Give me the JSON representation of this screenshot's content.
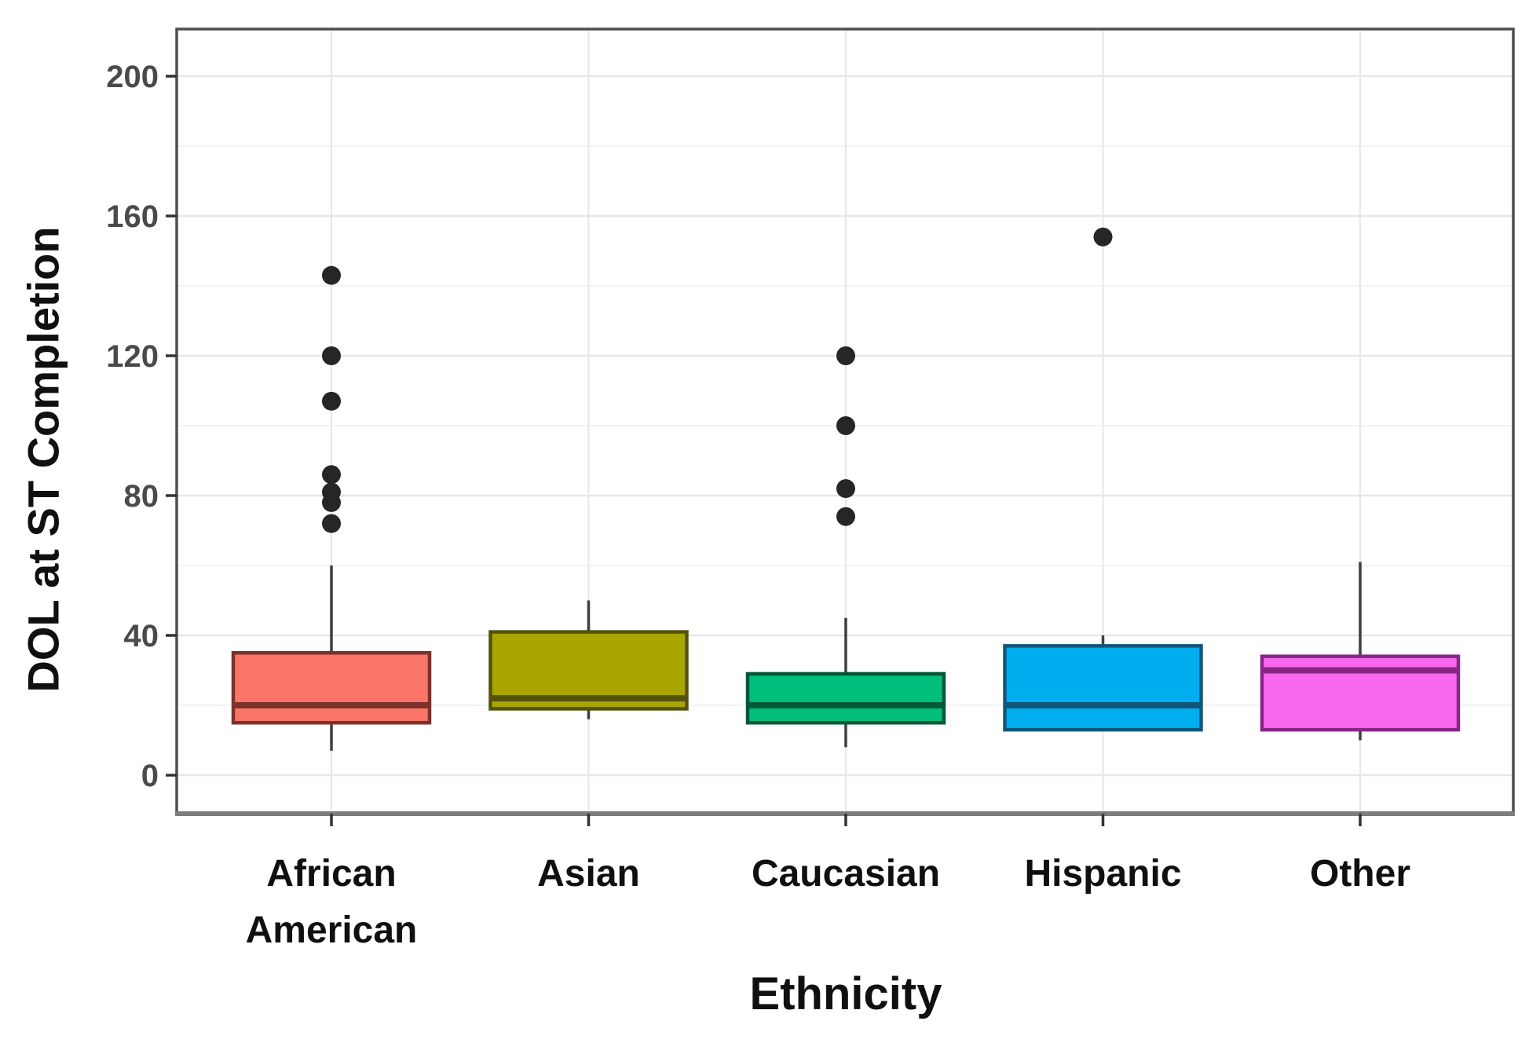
{
  "chart_data": {
    "type": "boxplot",
    "title": "",
    "xlabel": "Ethnicity",
    "ylabel": "DOL at ST Completion",
    "categories": [
      "African American",
      "Asian",
      "Caucasian",
      "Hispanic",
      "Other"
    ],
    "y_axis": {
      "tick_values": [
        0,
        40,
        80,
        120,
        160,
        200
      ],
      "minor_tick_values": [
        20,
        60,
        100,
        140,
        180
      ],
      "ylim": [
        -11,
        213
      ],
      "grid": "major+minor, light gray on white panel"
    },
    "series": [
      {
        "category": "African American",
        "tick_label_lines": [
          "African",
          "American"
        ],
        "whisker_low": 7,
        "q1": 15,
        "median": 20,
        "q3": 35,
        "whisker_high": 60,
        "outliers": [
          72,
          78,
          81,
          86,
          107,
          120,
          143
        ],
        "fill": "#FB7468",
        "stroke": "#7A322B"
      },
      {
        "category": "Asian",
        "tick_label_lines": [
          "Asian"
        ],
        "whisker_low": 16,
        "q1": 19,
        "median": 22,
        "q3": 41,
        "whisker_high": 50,
        "outliers": [],
        "fill": "#A9A503",
        "stroke": "#55520A"
      },
      {
        "category": "Caucasian",
        "tick_label_lines": [
          "Caucasian"
        ],
        "whisker_low": 8,
        "q1": 15,
        "median": 20,
        "q3": 29,
        "whisker_high": 45,
        "outliers": [
          74,
          82,
          100,
          120
        ],
        "fill": "#00BE7C",
        "stroke": "#00583A"
      },
      {
        "category": "Hispanic",
        "tick_label_lines": [
          "Hispanic"
        ],
        "whisker_low": 13,
        "q1": 13,
        "median": 20,
        "q3": 37,
        "whisker_high": 40,
        "outliers": [
          154
        ],
        "fill": "#00AEEF",
        "stroke": "#10567A"
      },
      {
        "category": "Other",
        "tick_label_lines": [
          "Other"
        ],
        "whisker_low": 10,
        "q1": 13,
        "median": 30,
        "q3": 34,
        "whisker_high": 61,
        "outliers": [],
        "fill": "#F969F0",
        "stroke": "#862687"
      }
    ],
    "colors": {
      "panel_background": "#ffffff",
      "grid_major": "#e7e7e7",
      "grid_minor": "#f3f3f3",
      "panel_border": "#4f4f4f",
      "axis_bottom_line": "#7d7d7d",
      "tick_mark": "#333333",
      "y_tick_label": "#4a4a4a",
      "axis_text": "#101010",
      "whisker": "#3f3f3f",
      "outlier_dot": "#262626"
    }
  }
}
